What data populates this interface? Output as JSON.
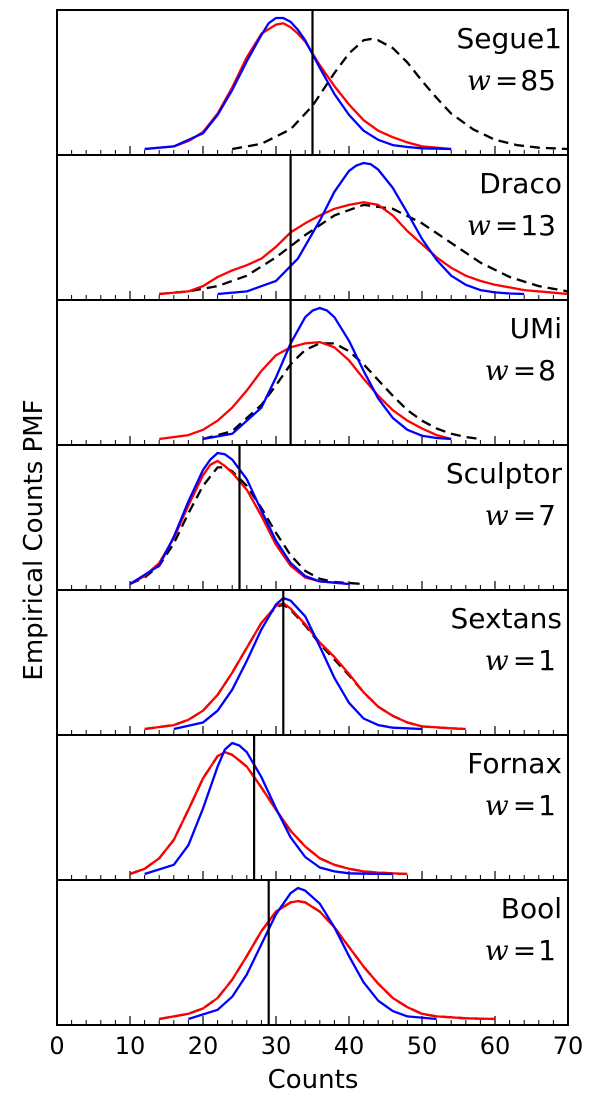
{
  "colors": {
    "model": "#0000ff",
    "simulated": "#ff0000",
    "alternate": "#000000",
    "observed": "#000000"
  },
  "chart_data": {
    "type": "line",
    "xlabel": "Counts",
    "ylabel": "Empirical Counts PMF",
    "xlim": [
      0,
      70
    ],
    "xticks": [
      0,
      10,
      20,
      30,
      40,
      50,
      60,
      70
    ],
    "xtick_labels": [
      "0",
      "10",
      "20",
      "30",
      "40",
      "50",
      "60",
      "70"
    ],
    "legend": "none",
    "grid": false,
    "series_styles": [
      {
        "key": "blue",
        "color": "#0000ff",
        "dash": "solid"
      },
      {
        "key": "red",
        "color": "#ff0000",
        "dash": "solid"
      },
      {
        "key": "dashed",
        "color": "#000000",
        "dash": "dashed"
      }
    ],
    "panels": [
      {
        "name": "Segue1",
        "w_label": "w",
        "w_value": "85",
        "observed": 35,
        "ylim": [
          0,
          1.0
        ],
        "blue": {
          "x": [
            12,
            16,
            20,
            22,
            24,
            26,
            28,
            29,
            30,
            31,
            32,
            33,
            34,
            36,
            38,
            40,
            42,
            44,
            46,
            48,
            50,
            54
          ],
          "y": [
            0.0,
            0.02,
            0.12,
            0.26,
            0.45,
            0.67,
            0.87,
            0.96,
            1.0,
            1.0,
            0.97,
            0.91,
            0.83,
            0.62,
            0.42,
            0.26,
            0.14,
            0.07,
            0.03,
            0.015,
            0.005,
            0.0
          ]
        },
        "red": {
          "x": [
            12,
            16,
            18,
            20,
            22,
            24,
            26,
            28,
            30,
            31,
            32,
            33,
            34,
            36,
            38,
            40,
            42,
            44,
            46,
            48,
            50,
            52,
            54
          ],
          "y": [
            0.0,
            0.02,
            0.06,
            0.13,
            0.27,
            0.47,
            0.7,
            0.88,
            0.95,
            0.96,
            0.93,
            0.88,
            0.82,
            0.64,
            0.48,
            0.34,
            0.22,
            0.14,
            0.09,
            0.05,
            0.02,
            0.01,
            0.0
          ]
        },
        "dashed": {
          "x": [
            24,
            28,
            32,
            35,
            38,
            40,
            42,
            43,
            44,
            46,
            48,
            50,
            52,
            54,
            57,
            60,
            63,
            66,
            70
          ],
          "y": [
            0.0,
            0.04,
            0.15,
            0.33,
            0.58,
            0.73,
            0.83,
            0.84,
            0.83,
            0.77,
            0.66,
            0.52,
            0.39,
            0.27,
            0.15,
            0.07,
            0.03,
            0.01,
            0.0
          ]
        }
      },
      {
        "name": "Draco",
        "w_label": "w",
        "w_value": "13",
        "observed": 32,
        "ylim": [
          0,
          1.0
        ],
        "blue": {
          "x": [
            22,
            26,
            30,
            33,
            36,
            38,
            40,
            41,
            42,
            43,
            44,
            46,
            48,
            50,
            52,
            54,
            56,
            58,
            60,
            62,
            64
          ],
          "y": [
            0.0,
            0.02,
            0.1,
            0.27,
            0.56,
            0.78,
            0.94,
            0.98,
            1.0,
            0.99,
            0.95,
            0.81,
            0.62,
            0.42,
            0.26,
            0.14,
            0.07,
            0.03,
            0.012,
            0.004,
            0.0
          ]
        },
        "red": {
          "x": [
            14,
            18,
            20,
            22,
            24,
            26,
            28,
            30,
            32,
            34,
            36,
            38,
            40,
            42,
            44,
            46,
            48,
            50,
            52,
            54,
            56,
            58,
            60,
            62,
            64,
            66,
            68,
            70
          ],
          "y": [
            0.0,
            0.02,
            0.06,
            0.13,
            0.18,
            0.22,
            0.27,
            0.36,
            0.47,
            0.54,
            0.6,
            0.65,
            0.68,
            0.7,
            0.68,
            0.6,
            0.48,
            0.38,
            0.28,
            0.2,
            0.14,
            0.1,
            0.07,
            0.05,
            0.03,
            0.02,
            0.01,
            0.0
          ]
        },
        "dashed": {
          "x": [
            14,
            18,
            22,
            26,
            30,
            34,
            38,
            42,
            46,
            50,
            54,
            58,
            62,
            66,
            70
          ],
          "y": [
            0.0,
            0.02,
            0.06,
            0.14,
            0.28,
            0.45,
            0.6,
            0.68,
            0.65,
            0.54,
            0.39,
            0.24,
            0.13,
            0.06,
            0.02
          ]
        }
      },
      {
        "name": "UMi",
        "w_label": "w",
        "w_value": "8",
        "observed": 32,
        "ylim": [
          0,
          1.0
        ],
        "blue": {
          "x": [
            20,
            24,
            28,
            30,
            32,
            34,
            35,
            36,
            37,
            38,
            40,
            42,
            44,
            46,
            48,
            50,
            52,
            54
          ],
          "y": [
            0.0,
            0.04,
            0.24,
            0.47,
            0.73,
            0.93,
            0.98,
            1.0,
            0.98,
            0.93,
            0.75,
            0.52,
            0.31,
            0.16,
            0.07,
            0.025,
            0.008,
            0.0
          ]
        },
        "red": {
          "x": [
            14,
            18,
            20,
            22,
            24,
            26,
            28,
            30,
            32,
            34,
            36,
            38,
            40,
            42,
            44,
            46,
            48,
            50,
            52,
            54
          ],
          "y": [
            0.0,
            0.03,
            0.07,
            0.14,
            0.24,
            0.37,
            0.52,
            0.64,
            0.7,
            0.73,
            0.74,
            0.7,
            0.6,
            0.46,
            0.33,
            0.22,
            0.14,
            0.08,
            0.03,
            0.0
          ]
        },
        "dashed": {
          "x": [
            20,
            24,
            28,
            30,
            32,
            34,
            36,
            38,
            40,
            42,
            44,
            46,
            48,
            50,
            52,
            54,
            56,
            58
          ],
          "y": [
            0.0,
            0.06,
            0.26,
            0.41,
            0.57,
            0.68,
            0.73,
            0.73,
            0.67,
            0.57,
            0.45,
            0.33,
            0.22,
            0.14,
            0.08,
            0.04,
            0.015,
            0.0
          ]
        }
      },
      {
        "name": "Sculptor",
        "w_label": "w",
        "w_value": "7",
        "observed": 25,
        "ylim": [
          0,
          1.0
        ],
        "blue": {
          "x": [
            10,
            14,
            16,
            18,
            20,
            21,
            22,
            23,
            24,
            26,
            28,
            30,
            32,
            34,
            36,
            40
          ],
          "y": [
            0.0,
            0.14,
            0.36,
            0.63,
            0.87,
            0.95,
            1.0,
            0.99,
            0.95,
            0.8,
            0.56,
            0.33,
            0.16,
            0.06,
            0.02,
            0.0
          ]
        },
        "red": {
          "x": [
            10,
            12,
            14,
            16,
            18,
            20,
            21,
            22,
            23,
            24,
            26,
            28,
            30,
            32,
            34,
            36,
            40
          ],
          "y": [
            0.0,
            0.06,
            0.16,
            0.35,
            0.6,
            0.83,
            0.91,
            0.94,
            0.9,
            0.85,
            0.72,
            0.52,
            0.3,
            0.14,
            0.05,
            0.02,
            0.0
          ]
        },
        "dashed": {
          "x": [
            10,
            12,
            14,
            16,
            18,
            20,
            22,
            23,
            24,
            26,
            28,
            30,
            32,
            34,
            36,
            38,
            42
          ],
          "y": [
            0.0,
            0.05,
            0.14,
            0.31,
            0.54,
            0.75,
            0.89,
            0.89,
            0.86,
            0.75,
            0.58,
            0.39,
            0.22,
            0.1,
            0.04,
            0.015,
            0.0
          ]
        }
      },
      {
        "name": "Sextans",
        "w_label": "w",
        "w_value": "1",
        "observed": 31,
        "ylim": [
          0,
          1.0
        ],
        "blue": {
          "x": [
            16,
            20,
            22,
            24,
            26,
            28,
            30,
            31,
            32,
            34,
            36,
            38,
            40,
            42,
            44,
            46,
            50
          ],
          "y": [
            0.0,
            0.05,
            0.14,
            0.3,
            0.52,
            0.76,
            0.95,
            1.0,
            0.98,
            0.86,
            0.63,
            0.39,
            0.2,
            0.08,
            0.03,
            0.01,
            0.0
          ]
        },
        "red": {
          "x": [
            12,
            16,
            18,
            20,
            22,
            24,
            26,
            28,
            30,
            31,
            32,
            34,
            36,
            38,
            40,
            42,
            44,
            46,
            48,
            50,
            54,
            56
          ],
          "y": [
            0.0,
            0.03,
            0.07,
            0.14,
            0.26,
            0.43,
            0.62,
            0.81,
            0.94,
            0.96,
            0.92,
            0.8,
            0.66,
            0.55,
            0.42,
            0.28,
            0.17,
            0.1,
            0.05,
            0.02,
            0.005,
            0.0
          ]
        },
        "dashed": {
          "x": [
            12,
            16,
            18,
            20,
            22,
            24,
            26,
            28,
            30,
            31,
            32,
            34,
            36,
            38,
            40,
            42,
            44,
            46,
            48,
            50,
            54,
            56
          ],
          "y": [
            0.0,
            0.03,
            0.07,
            0.14,
            0.26,
            0.43,
            0.62,
            0.81,
            0.93,
            0.95,
            0.91,
            0.79,
            0.65,
            0.53,
            0.41,
            0.28,
            0.17,
            0.1,
            0.05,
            0.02,
            0.005,
            0.0
          ]
        }
      },
      {
        "name": "Fornax",
        "w_label": "w",
        "w_value": "1",
        "observed": 27,
        "ylim": [
          0,
          1.0
        ],
        "blue": {
          "x": [
            12,
            16,
            18,
            20,
            22,
            23,
            24,
            25,
            26,
            28,
            30,
            32,
            34,
            36,
            38,
            40,
            42,
            46
          ],
          "y": [
            0.0,
            0.07,
            0.22,
            0.5,
            0.82,
            0.95,
            1.0,
            0.98,
            0.93,
            0.74,
            0.5,
            0.28,
            0.13,
            0.05,
            0.02,
            0.005,
            0.002,
            0.0
          ]
        },
        "red": {
          "x": [
            10,
            12,
            14,
            16,
            18,
            20,
            22,
            23,
            24,
            26,
            28,
            30,
            32,
            34,
            36,
            38,
            40,
            42,
            44,
            48
          ],
          "y": [
            0.0,
            0.04,
            0.12,
            0.26,
            0.49,
            0.73,
            0.9,
            0.93,
            0.91,
            0.82,
            0.66,
            0.49,
            0.33,
            0.21,
            0.12,
            0.07,
            0.04,
            0.02,
            0.01,
            0.0
          ]
        },
        "dashed": {
          "x": [
            10,
            12,
            14,
            16,
            18,
            20,
            22,
            23,
            24,
            26,
            28,
            30,
            32,
            34,
            36,
            38,
            40,
            42,
            44,
            48
          ],
          "y": [
            0.0,
            0.04,
            0.12,
            0.26,
            0.49,
            0.73,
            0.9,
            0.93,
            0.91,
            0.82,
            0.66,
            0.49,
            0.33,
            0.21,
            0.12,
            0.07,
            0.04,
            0.02,
            0.01,
            0.0
          ]
        }
      },
      {
        "name": "Bool",
        "w_label": "w",
        "w_value": "1",
        "observed": 29,
        "ylim": [
          0,
          1.0
        ],
        "blue": {
          "x": [
            18,
            22,
            24,
            26,
            28,
            30,
            32,
            33,
            34,
            36,
            38,
            40,
            42,
            44,
            46,
            48,
            52
          ],
          "y": [
            0.0,
            0.07,
            0.17,
            0.34,
            0.57,
            0.8,
            0.96,
            1.0,
            0.98,
            0.88,
            0.7,
            0.48,
            0.28,
            0.14,
            0.06,
            0.02,
            0.0
          ]
        },
        "red": {
          "x": [
            14,
            18,
            20,
            22,
            24,
            26,
            28,
            30,
            32,
            33,
            34,
            36,
            38,
            40,
            42,
            44,
            46,
            48,
            50,
            52,
            56,
            60
          ],
          "y": [
            0.0,
            0.04,
            0.08,
            0.16,
            0.3,
            0.48,
            0.67,
            0.82,
            0.89,
            0.9,
            0.89,
            0.82,
            0.7,
            0.55,
            0.4,
            0.27,
            0.16,
            0.09,
            0.04,
            0.02,
            0.005,
            0.0
          ]
        },
        "dashed": {
          "x": [
            14,
            18,
            20,
            22,
            24,
            26,
            28,
            30,
            32,
            33,
            34,
            36,
            38,
            40,
            42,
            44,
            46,
            48,
            50,
            52,
            56,
            60
          ],
          "y": [
            0.0,
            0.04,
            0.08,
            0.16,
            0.3,
            0.48,
            0.67,
            0.82,
            0.89,
            0.9,
            0.89,
            0.82,
            0.7,
            0.55,
            0.4,
            0.27,
            0.16,
            0.09,
            0.04,
            0.02,
            0.005,
            0.0
          ]
        }
      }
    ]
  }
}
